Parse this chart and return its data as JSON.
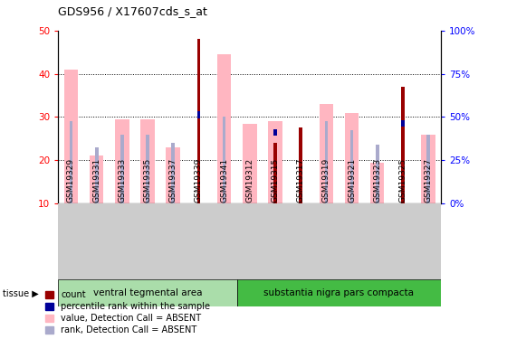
{
  "title": "GDS956 / X17607cds_s_at",
  "samples": [
    "GSM19329",
    "GSM19331",
    "GSM19333",
    "GSM19335",
    "GSM19337",
    "GSM19339",
    "GSM19341",
    "GSM19312",
    "GSM19315",
    "GSM19317",
    "GSM19319",
    "GSM19321",
    "GSM19323",
    "GSM19325",
    "GSM19327"
  ],
  "groups": [
    "ventral tegmental area",
    "substantia nigra pars compacta"
  ],
  "group_spans": [
    7,
    8
  ],
  "value_absent": [
    41,
    21,
    29.5,
    29.5,
    23,
    null,
    44.5,
    28.5,
    29,
    null,
    33,
    31,
    19.5,
    null,
    26
  ],
  "rank_absent": [
    29,
    null,
    26,
    26,
    null,
    null,
    30,
    null,
    null,
    27.5,
    29,
    27,
    null,
    28,
    26
  ],
  "rank_absent_small": [
    null,
    23,
    null,
    null,
    24,
    null,
    null,
    null,
    null,
    null,
    null,
    null,
    23.5,
    null,
    null
  ],
  "count": [
    null,
    null,
    null,
    null,
    null,
    48,
    null,
    null,
    24,
    27.5,
    null,
    null,
    null,
    37,
    null
  ],
  "percentile_rank": [
    null,
    null,
    null,
    null,
    null,
    30.5,
    null,
    null,
    26.5,
    null,
    null,
    null,
    null,
    28.5,
    null
  ],
  "ylim": [
    10,
    50
  ],
  "yticks_left": [
    10,
    20,
    30,
    40,
    50
  ],
  "yticks_right": [
    0,
    25,
    50,
    75,
    100
  ],
  "color_count": "#990000",
  "color_percentile": "#000099",
  "color_value_absent": "#FFB6C1",
  "color_rank_absent": "#AAAACC",
  "bg_xtick": "#CCCCCC",
  "bg_group1": "#AADDAA",
  "bg_group2": "#44BB44",
  "legend_items": [
    "count",
    "percentile rank within the sample",
    "value, Detection Call = ABSENT",
    "rank, Detection Call = ABSENT"
  ]
}
